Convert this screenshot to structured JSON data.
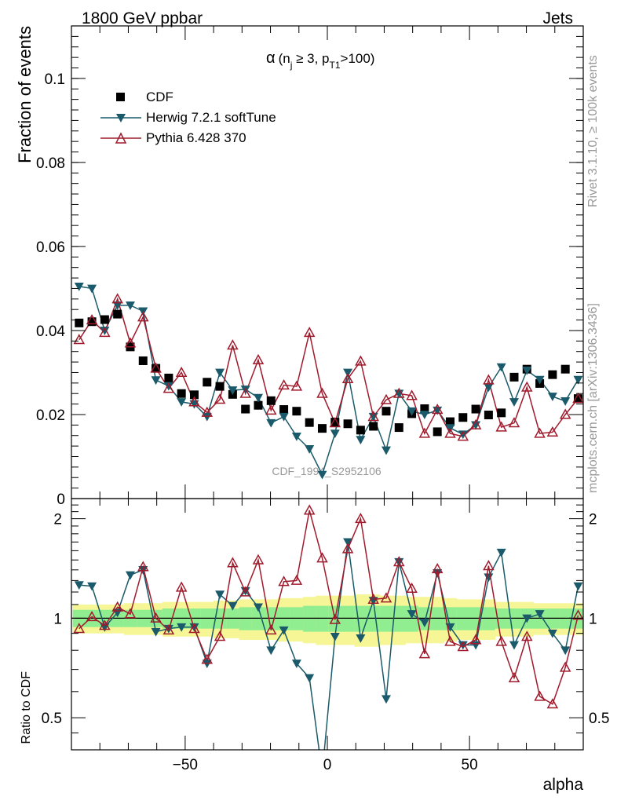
{
  "header": {
    "left": "1800 GeV ppbar",
    "right": "Jets"
  },
  "side_labels": {
    "rivet": "Rivet 3.1.10, ≥ 100k events",
    "mcplots": "mcplots.cern.ch [arXiv:1306.3436]"
  },
  "plot_title": {
    "alpha": "α",
    "open": "(n",
    "sub_j": "j",
    "mid": " ≥ 3, p",
    "sub_t1": "T1",
    "close": ">100)"
  },
  "analysis_id": "CDF_1994_S2952106",
  "colors": {
    "cdf": "#000000",
    "herwig": "#1a5a6a",
    "pythia": "#a01a2c",
    "band_inner": "#90ee90",
    "band_outer": "#f6f696"
  },
  "chart_data": [
    {
      "type": "scatter",
      "panel": "main",
      "ylabel": "Fraction of events",
      "xlim": [
        -90,
        90
      ],
      "ylim": [
        0,
        0.1125
      ],
      "yticks": [
        0,
        0.02,
        0.04,
        0.06,
        0.08,
        0.1
      ],
      "ytick_labels": [
        "0",
        "0.02",
        "0.04",
        "0.06",
        "0.08",
        "0.1"
      ],
      "legend": [
        "CDF",
        "Herwig 7.2.1 softTune",
        "Pythia 6.428 370"
      ],
      "x": [
        -87.3,
        -82.8,
        -78.3,
        -73.8,
        -69.3,
        -64.8,
        -60.3,
        -55.8,
        -51.3,
        -46.8,
        -42.3,
        -37.8,
        -33.3,
        -28.8,
        -24.3,
        -19.8,
        -15.3,
        -10.8,
        -6.3,
        -1.8,
        2.7,
        7.2,
        11.7,
        16.2,
        20.7,
        25.2,
        29.7,
        34.2,
        38.7,
        43.2,
        47.7,
        52.2,
        56.7,
        61.2,
        65.7,
        70.2,
        74.7,
        79.2,
        83.7,
        88.2
      ],
      "series": [
        {
          "name": "CDF",
          "values": [
            0.0418,
            0.0421,
            0.0426,
            0.0439,
            0.0361,
            0.0328,
            0.031,
            0.0287,
            0.025,
            0.0247,
            0.0277,
            0.0267,
            0.0248,
            0.0213,
            0.0222,
            0.0233,
            0.0212,
            0.0208,
            0.0181,
            0.0167,
            0.0182,
            0.0178,
            0.0163,
            0.0172,
            0.0208,
            0.0169,
            0.0202,
            0.0214,
            0.0159,
            0.0183,
            0.0193,
            0.0213,
            0.0199,
            0.0204,
            0.0289,
            0.0308,
            0.0274,
            0.0295,
            0.0308,
            0.0238
          ]
        },
        {
          "name": "Herwig 7.2.1 softTune",
          "values": [
            0.0505,
            0.05,
            0.04,
            0.046,
            0.046,
            0.0446,
            0.0282,
            0.0268,
            0.023,
            0.0225,
            0.0195,
            0.03,
            0.0258,
            0.026,
            0.024,
            0.018,
            0.0195,
            0.0148,
            0.0118,
            0.0057,
            0.0155,
            0.03,
            0.014,
            0.0195,
            0.0115,
            0.025,
            0.0208,
            0.02,
            0.021,
            0.0168,
            0.0153,
            0.0175,
            0.0265,
            0.0313,
            0.023,
            0.0305,
            0.0283,
            0.0243,
            0.0232,
            0.0283
          ]
        },
        {
          "name": "Pythia 6.428 370",
          "values": [
            0.0378,
            0.0425,
            0.0395,
            0.0475,
            0.037,
            0.0432,
            0.031,
            0.0262,
            0.03,
            0.023,
            0.0205,
            0.0236,
            0.0365,
            0.025,
            0.033,
            0.021,
            0.027,
            0.0267,
            0.0395,
            0.025,
            0.018,
            0.0285,
            0.0327,
            0.0195,
            0.0235,
            0.025,
            0.0245,
            0.0155,
            0.0212,
            0.0155,
            0.0148,
            0.0175,
            0.0282,
            0.017,
            0.018,
            0.0265,
            0.0155,
            0.0158,
            0.02,
            0.0238
          ]
        }
      ]
    },
    {
      "type": "line",
      "panel": "ratio",
      "ylabel": "Ratio to CDF",
      "xlabel": "alpha",
      "xlim": [
        -90,
        90
      ],
      "ylim": [
        0.4,
        2.3
      ],
      "yscale": "log",
      "yticks": [
        0.5,
        1,
        2
      ],
      "ytick_labels": [
        "0.5",
        "1",
        "2"
      ],
      "xticks": [
        -50,
        0,
        50
      ],
      "xtick_labels": [
        "−50",
        "0",
        "50"
      ],
      "band_inner_halfwidth": [
        0.06,
        0.06,
        0.06,
        0.06,
        0.06,
        0.06,
        0.06,
        0.07,
        0.07,
        0.07,
        0.07,
        0.07,
        0.07,
        0.08,
        0.08,
        0.08,
        0.08,
        0.08,
        0.09,
        0.09,
        0.09,
        0.09,
        0.09,
        0.09,
        0.09,
        0.09,
        0.09,
        0.08,
        0.08,
        0.08,
        0.08,
        0.08,
        0.08,
        0.07,
        0.07,
        0.07,
        0.07,
        0.07,
        0.07,
        0.07
      ],
      "band_outer_halfwidth": [
        0.1,
        0.1,
        0.1,
        0.1,
        0.11,
        0.11,
        0.11,
        0.12,
        0.12,
        0.12,
        0.12,
        0.13,
        0.13,
        0.14,
        0.14,
        0.14,
        0.15,
        0.15,
        0.16,
        0.17,
        0.17,
        0.17,
        0.18,
        0.18,
        0.17,
        0.17,
        0.16,
        0.16,
        0.16,
        0.15,
        0.14,
        0.14,
        0.14,
        0.12,
        0.12,
        0.12,
        0.11,
        0.11,
        0.11,
        0.11
      ],
      "series": [
        {
          "name": "Herwig 7.2.1 softTune",
          "values": [
            1.26,
            1.25,
            0.94,
            1.04,
            1.35,
            1.4,
            0.91,
            0.93,
            0.94,
            0.94,
            0.73,
            1.18,
            1.09,
            1.21,
            1.08,
            0.8,
            0.92,
            0.73,
            0.66,
            0.34,
            0.88,
            1.7,
            0.87,
            1.13,
            0.57,
            1.48,
            1.03,
            0.97,
            1.37,
            0.94,
            0.83,
            0.83,
            1.33,
            1.58,
            0.83,
            1.0,
            1.03,
            0.9,
            0.8,
            1.25
          ]
        },
        {
          "name": "Pythia 6.428 370",
          "values": [
            0.93,
            1.01,
            0.95,
            1.08,
            1.03,
            1.43,
            1.0,
            0.92,
            1.24,
            0.93,
            0.75,
            0.88,
            1.47,
            1.2,
            1.5,
            0.92,
            1.29,
            1.3,
            2.12,
            1.52,
            0.99,
            1.62,
            2.0,
            1.14,
            1.15,
            1.48,
            1.23,
            0.78,
            1.41,
            0.85,
            0.82,
            0.86,
            1.44,
            0.85,
            0.66,
            0.88,
            0.58,
            0.55,
            0.71,
            1.02
          ]
        }
      ]
    }
  ]
}
